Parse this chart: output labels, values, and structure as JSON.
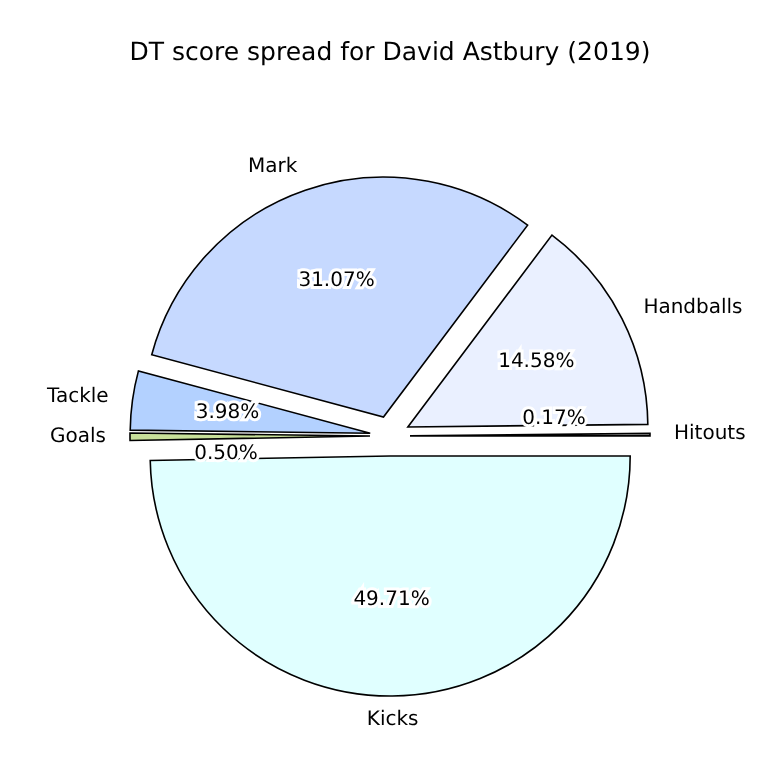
{
  "chart_data": {
    "type": "pie",
    "title": "DT score spread for David Astbury (2019)",
    "categories": [
      "Hitouts",
      "Handballs",
      "Mark",
      "Tackle",
      "Goals",
      "Kicks"
    ],
    "values": [
      0.17,
      14.58,
      31.07,
      3.98,
      0.5,
      49.71
    ],
    "value_labels": [
      "0.17%",
      "14.58%",
      "31.07%",
      "3.98%",
      "0.50%",
      "49.71%"
    ],
    "colors": [
      "#d8d8d8",
      "#eaf0ff",
      "#c6d9ff",
      "#b3d1ff",
      "#c8e09a",
      "#e0ffff"
    ],
    "data_labels": false
  }
}
